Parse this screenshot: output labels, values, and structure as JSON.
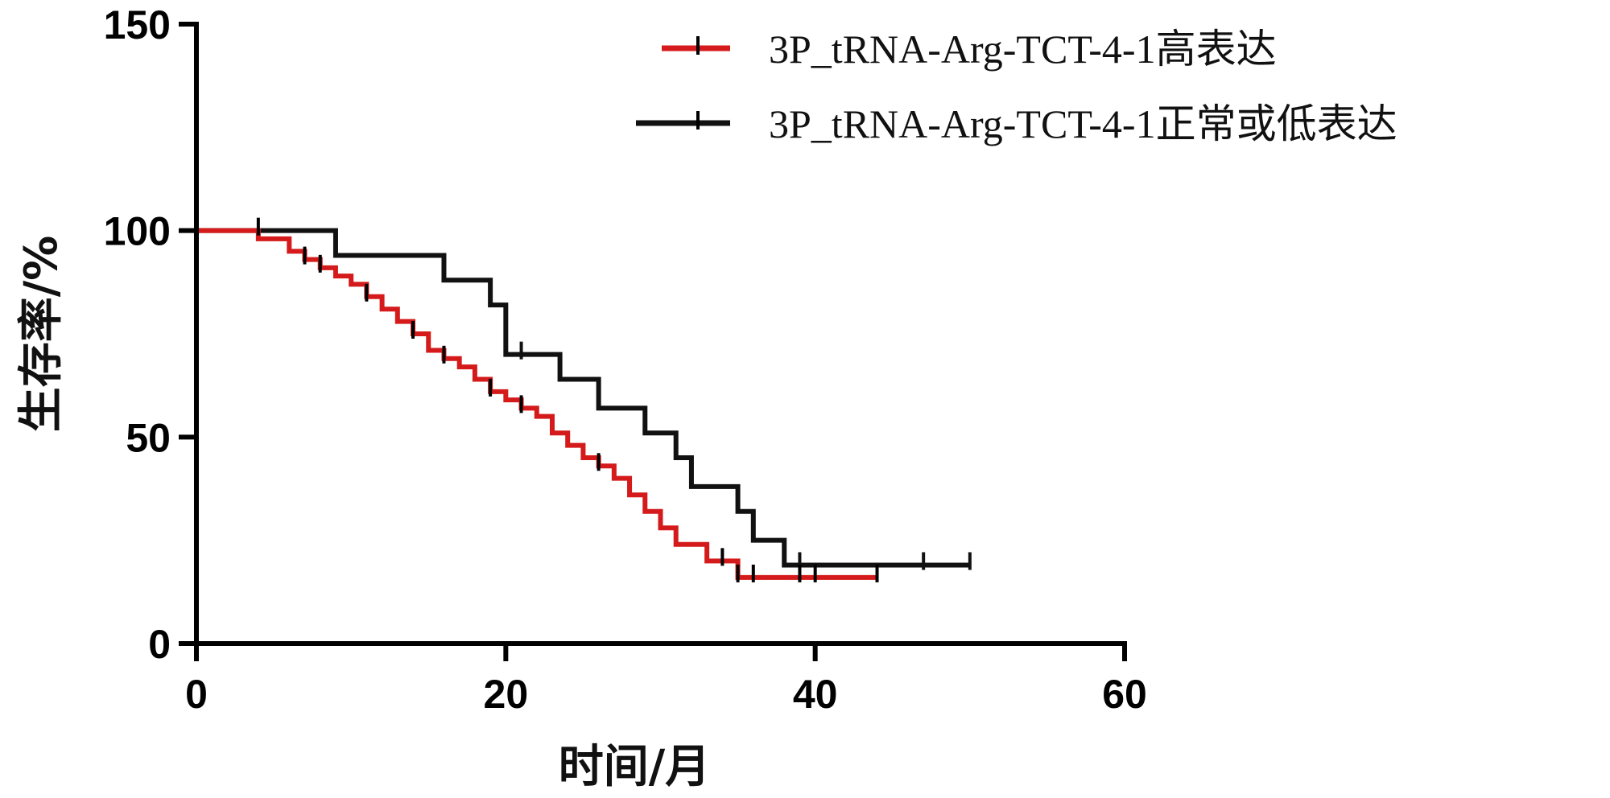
{
  "chart_data": {
    "type": "line",
    "subtype": "kaplan-meier step",
    "xlabel": "时间/月",
    "ylabel": "生存率/%",
    "xlim": [
      0,
      60
    ],
    "ylim": [
      0,
      150
    ],
    "x_ticks": [
      "0",
      "20",
      "40",
      "60"
    ],
    "y_ticks": [
      "0",
      "50",
      "100",
      "150"
    ],
    "legend_position": "top-right",
    "series": [
      {
        "name": "3P_tRNA-Arg-TCT-4-1高表达",
        "color": "#d41a1a",
        "x": [
          0,
          4,
          6,
          7,
          8,
          9,
          10,
          11,
          12,
          13,
          14,
          15,
          16,
          17,
          18,
          19,
          20,
          21,
          22,
          23,
          24,
          25,
          26,
          27,
          28,
          29,
          30,
          31,
          33,
          35,
          44
        ],
        "y": [
          100,
          98,
          95,
          93,
          91,
          89,
          87,
          84,
          81,
          78,
          75,
          71,
          69,
          67,
          64,
          61,
          59,
          57,
          55,
          51,
          48,
          45,
          43,
          40,
          36,
          32,
          28,
          24,
          20,
          16,
          16
        ],
        "censored": [
          {
            "x": 4,
            "y": 100
          },
          {
            "x": 7,
            "y": 93
          },
          {
            "x": 8,
            "y": 91
          },
          {
            "x": 11,
            "y": 84
          },
          {
            "x": 14,
            "y": 75
          },
          {
            "x": 16,
            "y": 69
          },
          {
            "x": 19,
            "y": 61
          },
          {
            "x": 21,
            "y": 57
          },
          {
            "x": 26,
            "y": 43
          },
          {
            "x": 34,
            "y": 20
          },
          {
            "x": 35,
            "y": 16
          },
          {
            "x": 36,
            "y": 16
          },
          {
            "x": 39,
            "y": 16
          },
          {
            "x": 40,
            "y": 16
          },
          {
            "x": 44,
            "y": 16
          }
        ]
      },
      {
        "name": "3P_tRNA-Arg-TCT-4-1正常或低表达",
        "color": "#111111",
        "x": [
          0,
          9,
          16,
          19,
          20,
          23.5,
          26,
          29,
          31,
          32,
          35,
          36,
          38,
          50
        ],
        "y": [
          100,
          94,
          88,
          82,
          70,
          64,
          57,
          51,
          45,
          38,
          32,
          25,
          19,
          19
        ],
        "censored": [
          {
            "x": 21,
            "y": 70
          },
          {
            "x": 39,
            "y": 19
          },
          {
            "x": 47,
            "y": 19
          },
          {
            "x": 50,
            "y": 19
          }
        ]
      }
    ]
  }
}
